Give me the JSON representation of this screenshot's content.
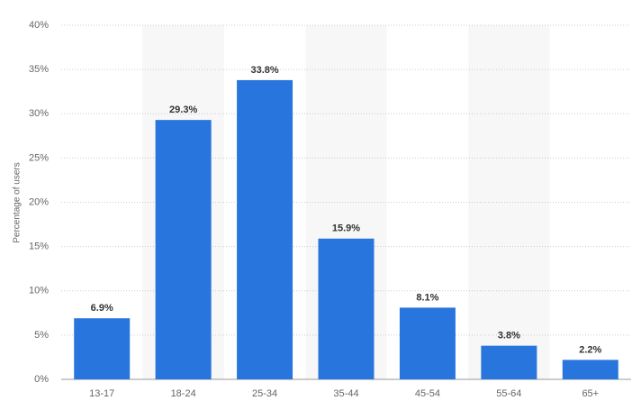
{
  "chart_data": {
    "type": "bar",
    "ylabel": "Percentage of users",
    "categories": [
      "13-17",
      "18-24",
      "25-34",
      "35-44",
      "45-54",
      "55-64",
      "65+"
    ],
    "values": [
      6.9,
      29.3,
      33.8,
      15.9,
      8.1,
      3.8,
      2.2
    ],
    "value_labels": [
      "6.9%",
      "29.3%",
      "33.8%",
      "15.9%",
      "8.1%",
      "3.8%",
      "2.2%"
    ],
    "color": "#2876dd",
    "ylim": [
      0,
      40
    ],
    "yticks": [
      {
        "value": 0,
        "label": "0%"
      },
      {
        "value": 5,
        "label": "5%"
      },
      {
        "value": 10,
        "label": "10%"
      },
      {
        "value": 15,
        "label": "15%"
      },
      {
        "value": 20,
        "label": "20%"
      },
      {
        "value": 25,
        "label": "25%"
      },
      {
        "value": 30,
        "label": "30%"
      },
      {
        "value": 35,
        "label": "35%"
      },
      {
        "value": 40,
        "label": "40%"
      }
    ],
    "grid": true
  }
}
